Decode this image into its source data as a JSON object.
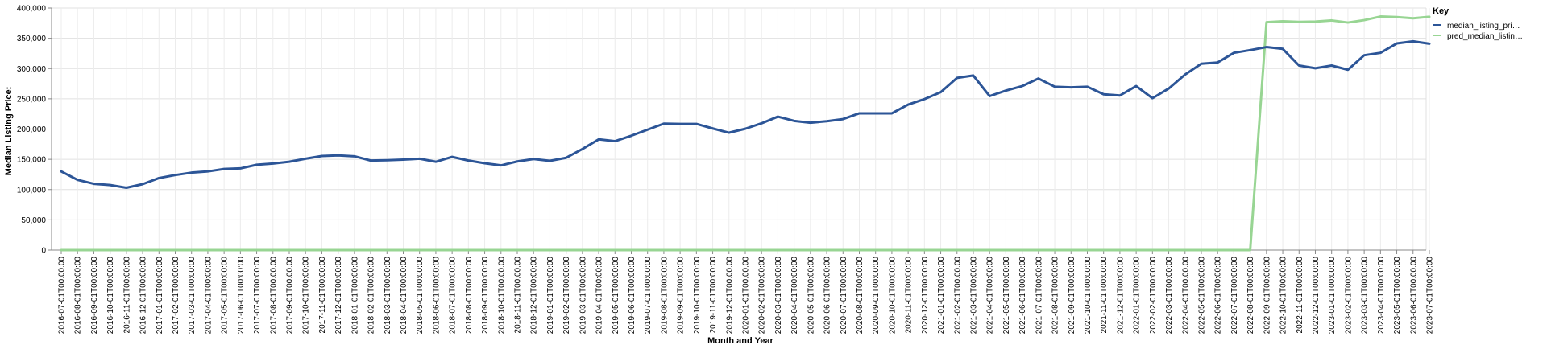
{
  "chart_data": {
    "type": "line",
    "xlabel": "Month and Year",
    "ylabel": "Median Listing Price:",
    "ylim": [
      0,
      400000
    ],
    "yticks": [
      "0",
      "50,000",
      "100,000",
      "150,000",
      "200,000",
      "250,000",
      "300,000",
      "350,000",
      "400,000"
    ],
    "grid": true,
    "legend": {
      "title": "Key",
      "position": "right",
      "labels": [
        "median_listing_pri…",
        "pred_median_listin…"
      ]
    },
    "x": [
      "2016-07-01T00:00:00",
      "2016-08-01T00:00:00",
      "2016-09-01T00:00:00",
      "2016-10-01T00:00:00",
      "2016-11-01T00:00:00",
      "2016-12-01T00:00:00",
      "2017-01-01T00:00:00",
      "2017-02-01T00:00:00",
      "2017-03-01T00:00:00",
      "2017-04-01T00:00:00",
      "2017-05-01T00:00:00",
      "2017-06-01T00:00:00",
      "2017-07-01T00:00:00",
      "2017-08-01T00:00:00",
      "2017-09-01T00:00:00",
      "2017-10-01T00:00:00",
      "2017-11-01T00:00:00",
      "2017-12-01T00:00:00",
      "2018-01-01T00:00:00",
      "2018-02-01T00:00:00",
      "2018-03-01T00:00:00",
      "2018-04-01T00:00:00",
      "2018-05-01T00:00:00",
      "2018-06-01T00:00:00",
      "2018-07-01T00:00:00",
      "2018-08-01T00:00:00",
      "2018-09-01T00:00:00",
      "2018-10-01T00:00:00",
      "2018-11-01T00:00:00",
      "2018-12-01T00:00:00",
      "2019-01-01T00:00:00",
      "2019-02-01T00:00:00",
      "2019-03-01T00:00:00",
      "2019-04-01T00:00:00",
      "2019-05-01T00:00:00",
      "2019-06-01T00:00:00",
      "2019-07-01T00:00:00",
      "2019-08-01T00:00:00",
      "2019-09-01T00:00:00",
      "2019-10-01T00:00:00",
      "2019-11-01T00:00:00",
      "2019-12-01T00:00:00",
      "2020-01-01T00:00:00",
      "2020-02-01T00:00:00",
      "2020-03-01T00:00:00",
      "2020-04-01T00:00:00",
      "2020-05-01T00:00:00",
      "2020-06-01T00:00:00",
      "2020-07-01T00:00:00",
      "2020-08-01T00:00:00",
      "2020-09-01T00:00:00",
      "2020-10-01T00:00:00",
      "2020-11-01T00:00:00",
      "2020-12-01T00:00:00",
      "2021-01-01T00:00:00",
      "2021-02-01T00:00:00",
      "2021-03-01T00:00:00",
      "2021-04-01T00:00:00",
      "2021-05-01T00:00:00",
      "2021-06-01T00:00:00",
      "2021-07-01T00:00:00",
      "2021-08-01T00:00:00",
      "2021-09-01T00:00:00",
      "2021-10-01T00:00:00",
      "2021-11-01T00:00:00",
      "2021-12-01T00:00:00",
      "2022-01-01T00:00:00",
      "2022-02-01T00:00:00",
      "2022-03-01T00:00:00",
      "2022-04-01T00:00:00",
      "2022-05-01T00:00:00",
      "2022-06-01T00:00:00",
      "2022-07-01T00:00:00",
      "2022-08-01T00:00:00",
      "2022-09-01T00:00:00",
      "2022-10-01T00:00:00",
      "2022-11-01T00:00:00",
      "2022-12-01T00:00:00",
      "2023-01-01T00:00:00",
      "2023-02-01T00:00:00",
      "2023-03-01T00:00:00",
      "2023-04-01T00:00:00",
      "2023-05-01T00:00:00",
      "2023-06-01T00:00:00",
      "2023-07-01T00:00:00"
    ],
    "series": [
      {
        "name": "median_listing_pri…",
        "color": "#2c5597",
        "values": [
          130000,
          116000,
          109500,
          107500,
          103000,
          109000,
          119000,
          124000,
          128000,
          130000,
          134000,
          135000,
          141000,
          143000,
          146000,
          151000,
          155500,
          156500,
          155000,
          148000,
          148500,
          149500,
          151000,
          146000,
          154000,
          148000,
          143500,
          140000,
          146500,
          150500,
          147500,
          152500,
          167000,
          183000,
          180000,
          189000,
          199000,
          209000,
          208500,
          208500,
          201000,
          194000,
          200500,
          209500,
          220500,
          213500,
          210500,
          213000,
          216500,
          226000,
          226000,
          226000,
          240500,
          249500,
          261000,
          284500,
          288500,
          254500,
          263500,
          271000,
          283500,
          270000,
          269000,
          270000,
          257500,
          255500,
          271000,
          251000,
          267000,
          290000,
          308000,
          310000,
          326000,
          330500,
          335500,
          332500,
          305000,
          300500,
          305000,
          298000,
          322000,
          326000,
          341500,
          345000,
          341000
        ]
      },
      {
        "name": "pred_median_listin…",
        "color": "#98d593",
        "values": [
          0,
          0,
          0,
          0,
          0,
          0,
          0,
          0,
          0,
          0,
          0,
          0,
          0,
          0,
          0,
          0,
          0,
          0,
          0,
          0,
          0,
          0,
          0,
          0,
          0,
          0,
          0,
          0,
          0,
          0,
          0,
          0,
          0,
          0,
          0,
          0,
          0,
          0,
          0,
          0,
          0,
          0,
          0,
          0,
          0,
          0,
          0,
          0,
          0,
          0,
          0,
          0,
          0,
          0,
          0,
          0,
          0,
          0,
          0,
          0,
          0,
          0,
          0,
          0,
          0,
          0,
          0,
          0,
          0,
          0,
          0,
          0,
          0,
          0,
          376500,
          378000,
          377000,
          377500,
          379500,
          376000,
          380000,
          386000,
          385000,
          383000,
          385500
        ]
      }
    ]
  }
}
